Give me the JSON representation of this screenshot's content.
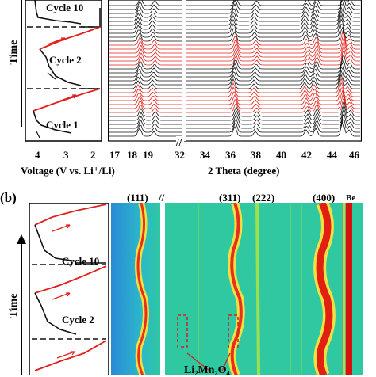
{
  "panel_a": {
    "time_label": "Time",
    "cycles": [
      "Cycle 10",
      "Cycle 2",
      "Cycle 1"
    ],
    "voltage_ticks": [
      "4",
      "3",
      "2"
    ],
    "theta_ticks": [
      "17",
      "18",
      "19",
      "32",
      "34",
      "36",
      "38",
      "40",
      "42",
      "44",
      "46"
    ],
    "xlabel_left": "Voltage (V vs. Li⁺/Li)",
    "xlabel_right": "2 Theta (degree)"
  },
  "panel_b": {
    "panel_letter": "(b)",
    "time_label": "Time",
    "cycles": [
      "Cycle 10",
      "Cycle 2"
    ],
    "peak_labels": [
      "(111)",
      "(311)",
      "(222)",
      "(400)",
      "Be"
    ],
    "annotation": "Li₂Mn₂O₄"
  },
  "colors": {
    "charge": "#e0201a",
    "discharge": "#111111",
    "heatmap_bg": "#2fc8a0"
  }
}
